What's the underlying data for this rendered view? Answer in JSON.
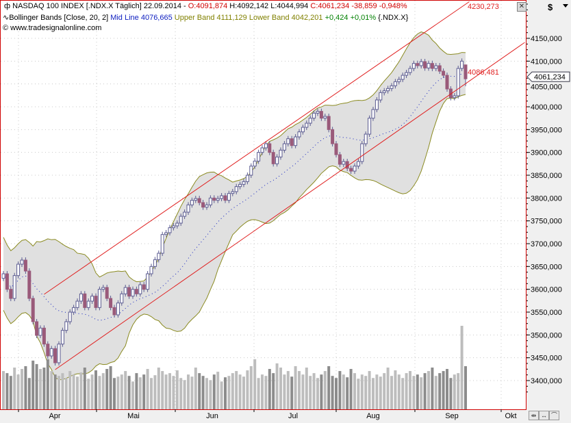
{
  "header": {
    "line1": {
      "symbol_icon": "candle-icon",
      "name": "NASDAQ 100 INDEX [.NDX.X  Täglich]",
      "date": "22.09.2014 -",
      "open": "O:4091,874",
      "high": "H:4092,142",
      "low": "L:4044,994",
      "close": "C:4061,234",
      "change": "-38,859 -0,948%"
    },
    "line2": {
      "indicator_icon": "wave-icon",
      "name": "Bollinger Bands [Close, 20, 2]",
      "mid": "Mid Line 4076,665",
      "upper": "Upper Band 4111,129",
      "lower": "Lower Band 4042,201",
      "change": "+0,424 +0,01%",
      "symbol": "{.NDX.X}"
    },
    "line3": "© www.tradesignalonline.com"
  },
  "toolbar": {
    "close_label": "✕",
    "currency": "$",
    "dropdown_icon": "triangle-down-icon",
    "nav_buttons": [
      "⇹",
      "↔",
      "⌒"
    ]
  },
  "colors": {
    "up_outline": "#5a5a90",
    "down_fill": "#9a5a7a",
    "band_line": "#8a8a20",
    "band_fill": "#e0e0e0",
    "mid_line": "#1020c0",
    "trendline": "#e02020",
    "frame": "#d00000",
    "vol_up": "#bdbdbd",
    "vol_down": "#8c8c8c"
  },
  "chart_data": {
    "type": "candlestick",
    "title": "NASDAQ 100 INDEX [.NDX.X  Täglich]",
    "last_date": "22.09.2014",
    "last_candle": {
      "open": 4091.874,
      "high": 4092.142,
      "low": 4044.994,
      "close": 4061.234
    },
    "closes": [
      3634,
      3600,
      3580,
      3630,
      3655,
      3664,
      3640,
      3580,
      3529,
      3499,
      3515,
      3480,
      3454,
      3470,
      3439,
      3480,
      3510,
      3529,
      3550,
      3560,
      3574,
      3590,
      3560,
      3574,
      3585,
      3560,
      3600,
      3604,
      3580,
      3560,
      3544,
      3570,
      3590,
      3604,
      3585,
      3600,
      3590,
      3610,
      3600,
      3634,
      3650,
      3665,
      3679,
      3720,
      3724,
      3735,
      3739,
      3745,
      3760,
      3769,
      3785,
      3795,
      3799,
      3790,
      3780,
      3785,
      3800,
      3795,
      3799,
      3805,
      3795,
      3810,
      3814,
      3825,
      3830,
      3836,
      3850,
      3870,
      3881,
      3900,
      3910,
      3919,
      3900,
      3875,
      3890,
      3905,
      3919,
      3930,
      3915,
      3934,
      3945,
      3955,
      3964,
      3975,
      3986,
      3990,
      3975,
      3979,
      3950,
      3919,
      3895,
      3874,
      3880,
      3865,
      3859,
      3870,
      3880,
      3919,
      3940,
      3975,
      3994,
      4015,
      4031,
      4035,
      4040,
      4046,
      4055,
      4060,
      4069,
      4075,
      4084,
      4095,
      4090,
      4099,
      4085,
      4095,
      4084,
      4090,
      4078,
      4069,
      4039,
      4020,
      4024,
      4084,
      4100,
      4061.234
    ],
    "volume": [
      55,
      52,
      48,
      60,
      50,
      58,
      62,
      45,
      70,
      65,
      58,
      60,
      72,
      55,
      50,
      48,
      52,
      45,
      55,
      50,
      47,
      53,
      60,
      44,
      50,
      56,
      48,
      52,
      58,
      62,
      45,
      47,
      50,
      55,
      48,
      40,
      52,
      46,
      50,
      58,
      45,
      49,
      60,
      55,
      50,
      52,
      48,
      56,
      45,
      42,
      50,
      47,
      60,
      52,
      48,
      45,
      42,
      50,
      54,
      40,
      46,
      48,
      52,
      55,
      50,
      47,
      56,
      62,
      72,
      45,
      50,
      48,
      58,
      52,
      66,
      60,
      50,
      55,
      47,
      62,
      55,
      50,
      60,
      48,
      52,
      45,
      50,
      55,
      62,
      48,
      45,
      55,
      50,
      46,
      58,
      52,
      44,
      50,
      48,
      55,
      45,
      50,
      47,
      52,
      60,
      48,
      56,
      50,
      45,
      52,
      55,
      48,
      50,
      46,
      52,
      55,
      60,
      48,
      52,
      55,
      58,
      45,
      50,
      52,
      120,
      62
    ],
    "trendlines": [
      {
        "label": "4230,273",
        "start_index": 11,
        "start_value": 3589,
        "end_index": 126,
        "end_value": 4230.273
      },
      {
        "label": "4086,481",
        "start_index": 14,
        "start_value": 3424,
        "end_index": 141,
        "end_value": 4141
      }
    ],
    "bollinger": {
      "period": 20,
      "stddev": 2
    },
    "y_ticks": [
      3400,
      3450,
      3500,
      3550,
      3600,
      3650,
      3700,
      3750,
      3800,
      3850,
      3900,
      3950,
      4000,
      4050,
      4100,
      4150
    ],
    "y_tick_labels": [
      "3400,000",
      "3450,000",
      "3500,000",
      "3550,000",
      "3600,000",
      "3650,000",
      "3700,000",
      "3750,000",
      "3800,000",
      "3850,000",
      "3900,000",
      "3950,000",
      "4000,000",
      "4050,000",
      "4100,000",
      "4150,000"
    ],
    "x_labels": [
      "Apr",
      "Mai",
      "Jun",
      "Jul",
      "Aug",
      "Sep",
      "Okt"
    ],
    "last_price_label": "4061,234",
    "ylim": [
      3370,
      4240
    ],
    "grid": true
  }
}
